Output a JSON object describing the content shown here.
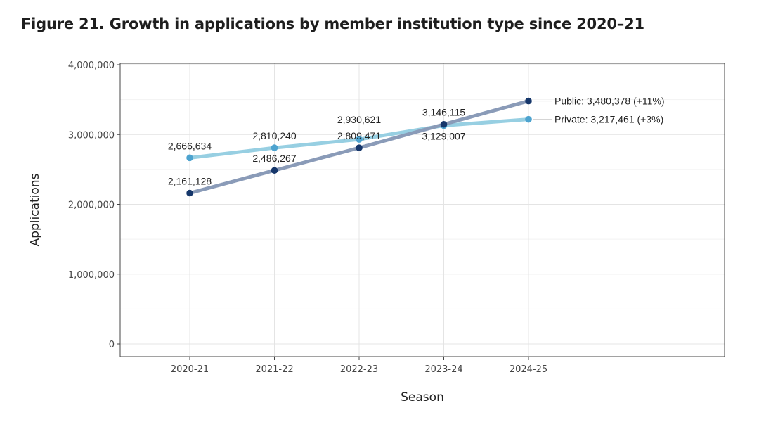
{
  "figure": {
    "title": "Figure 21. Growth in applications by member institution type since 2020–21"
  },
  "chart_data": {
    "type": "line",
    "title": "Figure 21. Growth in applications by member institution type since 2020–21",
    "xlabel": "Season",
    "ylabel": "Applications",
    "categories": [
      "2020-21",
      "2021-22",
      "2022-23",
      "2023-24",
      "2024-25"
    ],
    "ylim": [
      0,
      4000000
    ],
    "yticks": [
      0,
      1000000,
      2000000,
      3000000,
      4000000
    ],
    "ytick_labels": [
      "0",
      "1,000,000",
      "2,000,000",
      "3,000,000",
      "4,000,000"
    ],
    "grid": true,
    "legend": "none",
    "series": [
      {
        "name": "Public",
        "values": [
          2161128,
          2486267,
          2809471,
          3146115,
          3480378
        ],
        "value_labels": [
          "2,161,128",
          "2,486,267",
          "2,809,471",
          "3,146,115"
        ],
        "end_label": "Public: 3,480,378 (+11%)",
        "line_color": "#8a9bb8",
        "point_color": "#16376b"
      },
      {
        "name": "Private",
        "values": [
          2666634,
          2810240,
          2930621,
          3129007,
          3217461
        ],
        "value_labels": [
          "2,666,634",
          "2,810,240",
          "2,930,621",
          "3,129,007"
        ],
        "end_label": "Private: 3,217,461 (+3%)",
        "line_color": "#97cfe2",
        "point_color": "#4da3cf"
      }
    ]
  }
}
